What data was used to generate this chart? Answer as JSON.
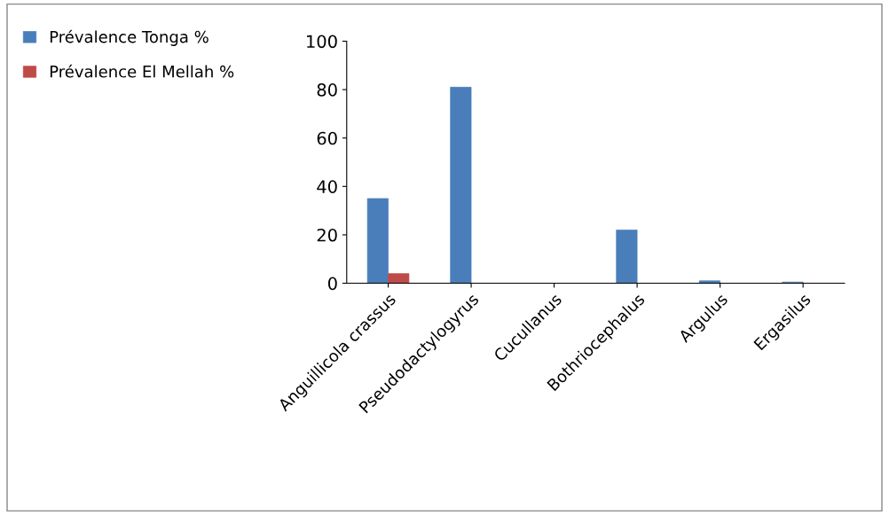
{
  "chart_data": {
    "type": "bar",
    "categories": [
      "Anguillicola crassus",
      "Pseudodactylogyrus",
      "Cucullanus",
      "Bothriocephalus",
      "Argulus",
      "Ergasilus"
    ],
    "series": [
      {
        "name": "Prévalence Tonga %",
        "color": "#4a7ebb",
        "values": [
          35,
          81,
          0,
          22,
          1,
          0.5
        ]
      },
      {
        "name": "Prévalence El Mellah %",
        "color": "#be4b48",
        "values": [
          4,
          0,
          0,
          0,
          0,
          0
        ]
      }
    ],
    "ylim": [
      0,
      100
    ],
    "yticks": [
      0,
      20,
      40,
      60,
      80,
      100
    ],
    "grid": false,
    "legend": "top left"
  }
}
